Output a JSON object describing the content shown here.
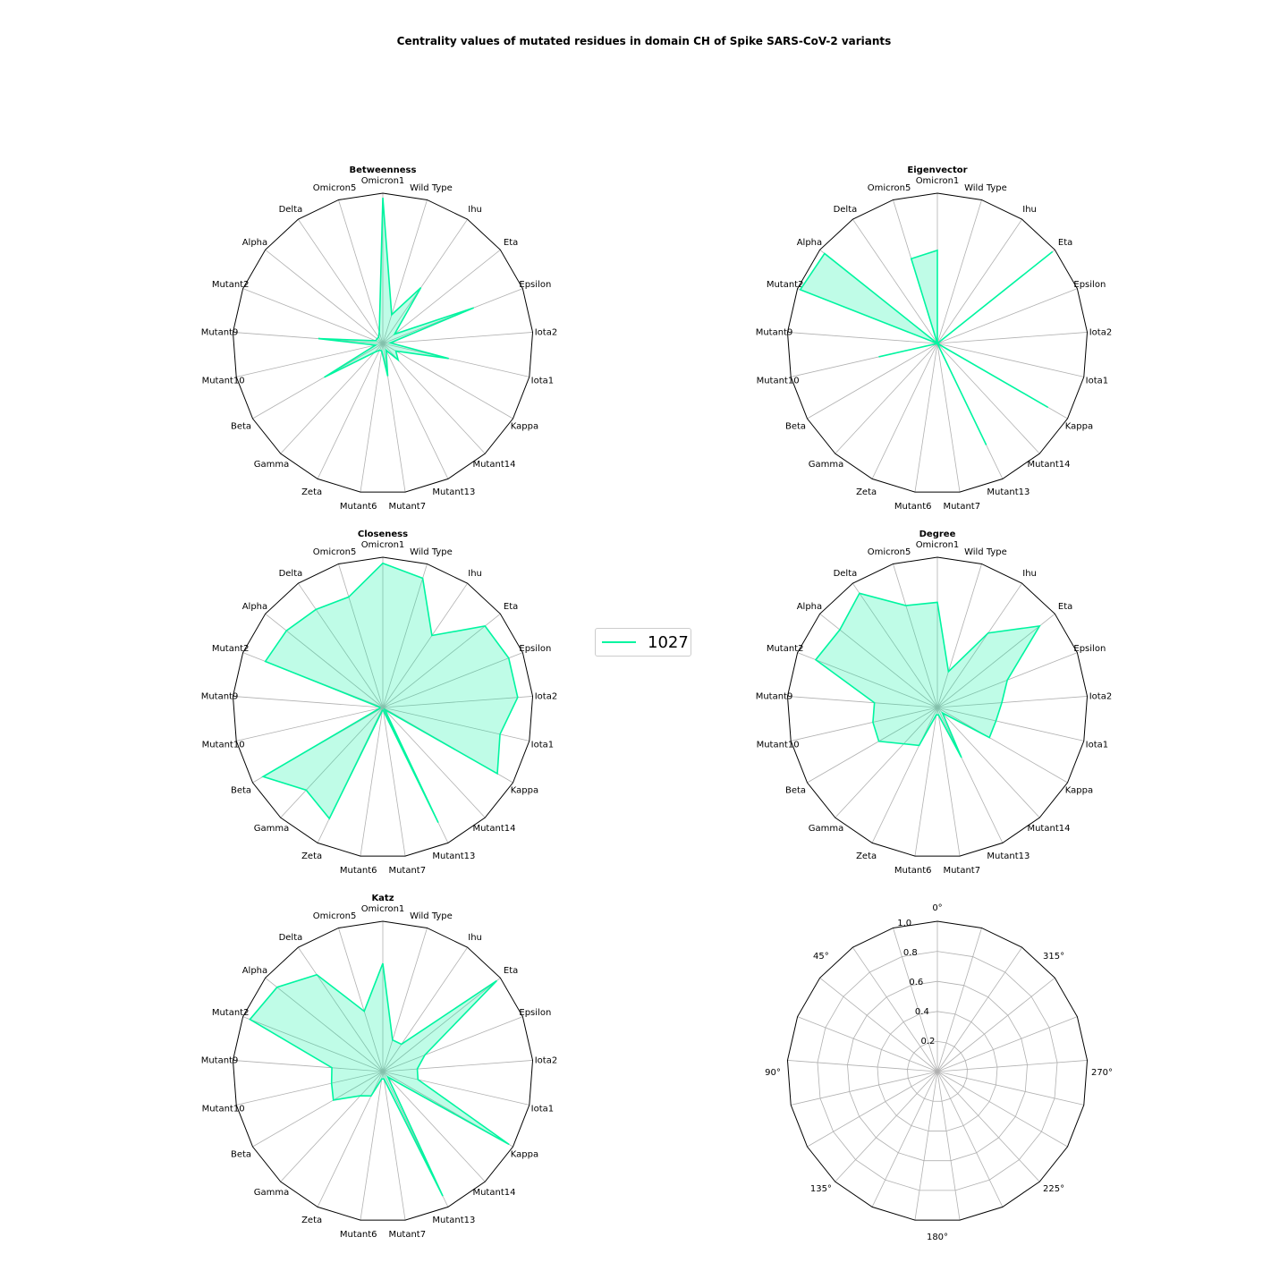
{
  "chart_data": {
    "type": "radar",
    "title": "Centrality values of mutated residues in domain CH of Spike SARS-CoV-2 variants",
    "categories": [
      "Omicron1",
      "Wild Type",
      "Ihu",
      "Eta",
      "Epsilon",
      "Iota2",
      "Iota1",
      "Kappa",
      "Mutant14",
      "Mutant13",
      "Mutant7",
      "Mutant6",
      "Zeta",
      "Gamma",
      "Beta",
      "Mutant10",
      "Mutant9",
      "Mutant2",
      "Alpha",
      "Delta",
      "Omicron5"
    ],
    "rlim": [
      0,
      1
    ],
    "color": "#00f5a0",
    "legend": {
      "entries": [
        "1027"
      ],
      "placement": "center"
    },
    "subplots": [
      {
        "title": "Betweenness",
        "series": [
          {
            "name": "1027",
            "values": [
              0.97,
              0.2,
              0.45,
              0.1,
              0.65,
              0.05,
              0.45,
              0.1,
              0.15,
              0.05,
              0.22,
              0.05,
              0.05,
              0.08,
              0.45,
              0.05,
              0.43,
              0.05,
              0.05,
              0.05,
              0.08
            ]
          }
        ]
      },
      {
        "title": "Eigenvector",
        "series": [
          {
            "name": "1027",
            "values": [
              0.62,
              0.0,
              0.0,
              0.98,
              0.0,
              0.0,
              0.0,
              0.85,
              0.0,
              0.75,
              0.0,
              0.0,
              0.0,
              0.0,
              0.0,
              0.4,
              0.0,
              0.98,
              0.96,
              0.0,
              0.59
            ]
          }
        ]
      },
      {
        "title": "Closeness",
        "series": [
          {
            "name": "1027",
            "values": [
              0.96,
              0.9,
              0.58,
              0.87,
              0.9,
              0.9,
              0.8,
              0.88,
              0.02,
              0.85,
              0.02,
              0.02,
              0.82,
              0.75,
              0.92,
              0.02,
              0.02,
              0.84,
              0.82,
              0.79,
              0.77
            ]
          }
        ]
      },
      {
        "title": "Degree",
        "series": [
          {
            "name": "1027",
            "values": [
              0.7,
              0.25,
              0.6,
              0.87,
              0.5,
              0.43,
              0.4,
              0.4,
              0.05,
              0.37,
              0.05,
              0.05,
              0.28,
              0.33,
              0.45,
              0.44,
              0.42,
              0.87,
              0.83,
              0.92,
              0.71
            ]
          }
        ]
      },
      {
        "title": "Katz",
        "series": [
          {
            "name": "1027",
            "values": [
              0.72,
              0.22,
              0.22,
              0.97,
              0.3,
              0.23,
              0.24,
              0.97,
              0.05,
              0.92,
              0.05,
              0.05,
              0.18,
              0.22,
              0.38,
              0.35,
              0.34,
              0.95,
              0.9,
              0.78,
              0.42
            ]
          }
        ]
      }
    ],
    "empty_polar": {
      "theta_labels": [
        "0°",
        "315°",
        "270°",
        "225°",
        "180°",
        "135°",
        "90°",
        "45°"
      ],
      "r_ticks": [
        "0.2",
        "0.4",
        "0.6",
        "0.8",
        "1.0"
      ]
    }
  }
}
